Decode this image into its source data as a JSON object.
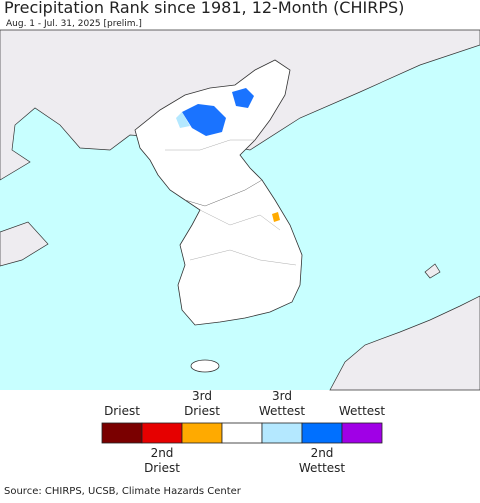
{
  "header": {
    "title": "Precipitation Rank since 1981, 12-Month (CHIRPS)",
    "subtitle": "Aug. 1 - Jul. 31, 2025 [prelim.]"
  },
  "legend": {
    "items": [
      {
        "color": "#7a0000",
        "label": [
          "Driest"
        ]
      },
      {
        "color": "#e60000",
        "label": [
          "2nd",
          "Driest"
        ]
      },
      {
        "color": "#ffaa00",
        "label": [
          "3rd",
          "Driest"
        ]
      },
      {
        "color": "#ffffff"
      },
      {
        "color": "#b4e8ff",
        "label": [
          "3rd",
          "Wettest"
        ]
      },
      {
        "color": "#0070ff",
        "label": [
          "2nd",
          "Wettest"
        ]
      },
      {
        "color": "#a000e6",
        "label": [
          "Wettest"
        ]
      }
    ]
  },
  "footer": {
    "source": "Source: CHIRPS, UCSB, Climate Hazards Center"
  }
}
